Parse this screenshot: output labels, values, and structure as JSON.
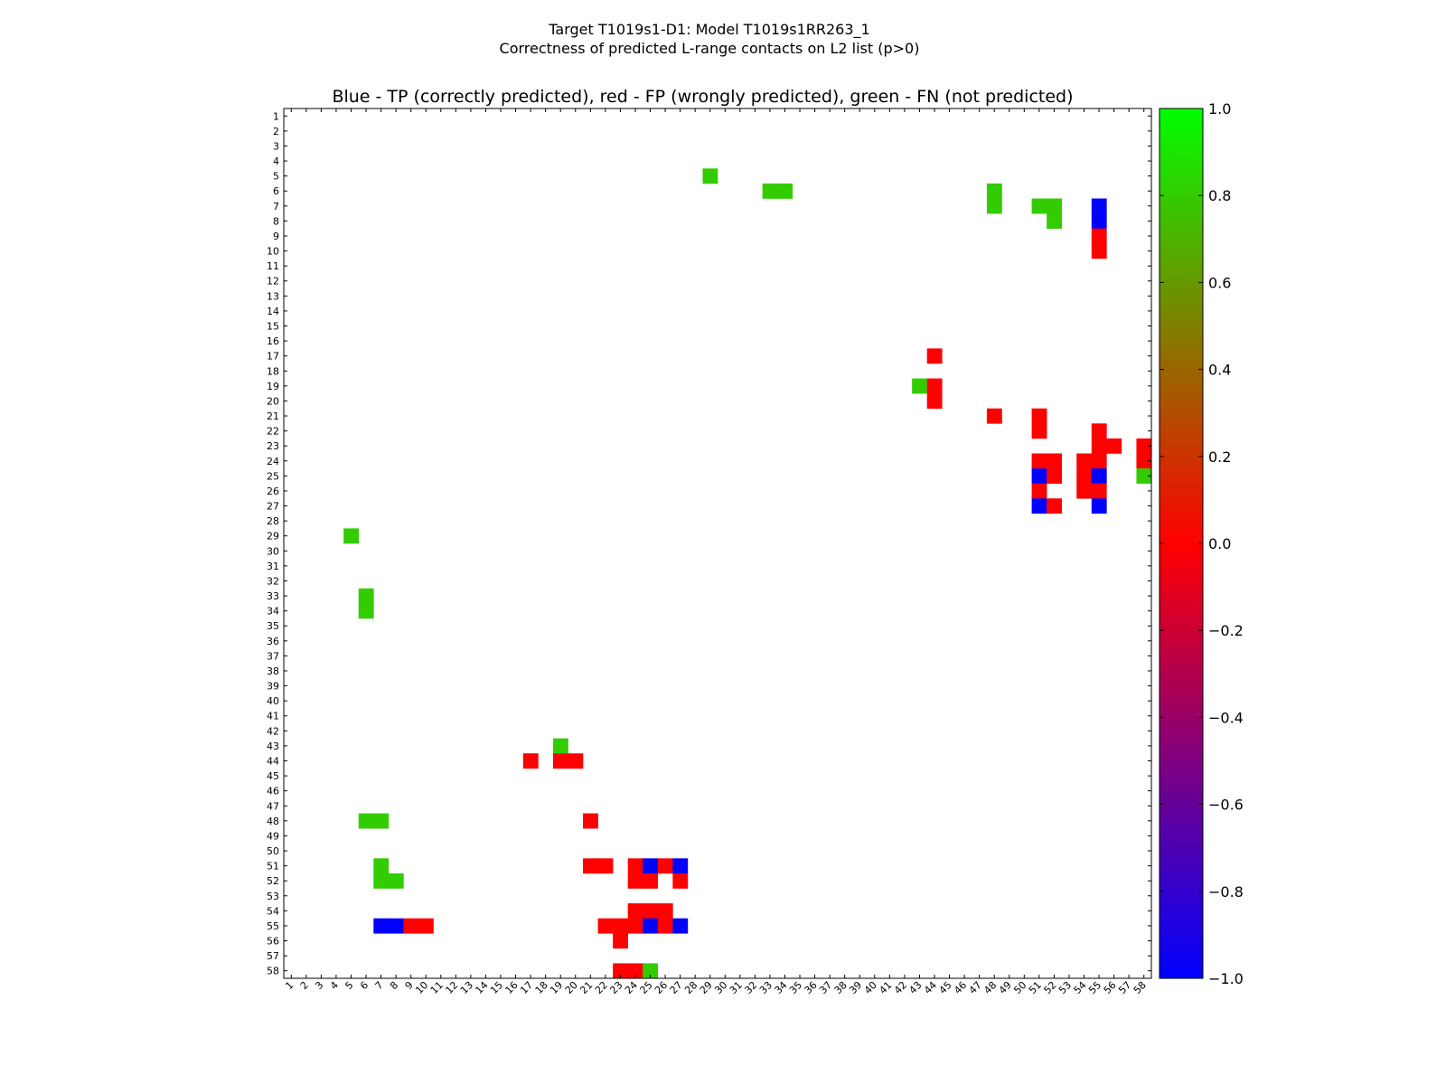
{
  "chart_data": {
    "type": "heatmap",
    "title_line1": "Target T1019s1-D1: Model T1019s1RR263_1",
    "title_line2": "Correctness of predicted L-range contacts on L2 list (p>0)",
    "subtitle": "Blue - TP (correctly predicted), red - FP (wrongly predicted), green - FN (not predicted)",
    "x_range": [
      1,
      58
    ],
    "y_range": [
      1,
      58
    ],
    "x_ticks": [
      "1",
      "2",
      "3",
      "4",
      "5",
      "6",
      "7",
      "8",
      "9",
      "10",
      "11",
      "12",
      "13",
      "14",
      "15",
      "16",
      "17",
      "18",
      "19",
      "20",
      "21",
      "22",
      "23",
      "24",
      "25",
      "26",
      "27",
      "28",
      "29",
      "30",
      "31",
      "32",
      "33",
      "34",
      "35",
      "36",
      "37",
      "38",
      "39",
      "40",
      "41",
      "42",
      "43",
      "44",
      "45",
      "46",
      "47",
      "48",
      "49",
      "50",
      "51",
      "52",
      "53",
      "54",
      "55",
      "56",
      "57",
      "58"
    ],
    "y_ticks": [
      "1",
      "2",
      "3",
      "4",
      "5",
      "6",
      "7",
      "8",
      "9",
      "10",
      "11",
      "12",
      "13",
      "14",
      "15",
      "16",
      "17",
      "18",
      "19",
      "20",
      "21",
      "22",
      "23",
      "24",
      "25",
      "26",
      "27",
      "28",
      "29",
      "30",
      "31",
      "32",
      "33",
      "34",
      "35",
      "36",
      "37",
      "38",
      "39",
      "40",
      "41",
      "42",
      "43",
      "44",
      "45",
      "46",
      "47",
      "48",
      "49",
      "50",
      "51",
      "52",
      "53",
      "54",
      "55",
      "56",
      "57",
      "58"
    ],
    "colorbar": {
      "range": [
        -1.0,
        1.0
      ],
      "tick_labels": [
        "1.0",
        "0.8",
        "0.6",
        "0.4",
        "0.2",
        "0.0",
        "−0.2",
        "−0.4",
        "−0.6",
        "−0.8",
        "−1.0"
      ],
      "stops": [
        "#0000ff",
        "#ff0000",
        "#00ff00"
      ]
    },
    "colors": {
      "TP": "#0000ff",
      "FP": "#ff0000",
      "FN": "#33cc00"
    },
    "cells": [
      {
        "x": 29,
        "y": 5,
        "c": "FN"
      },
      {
        "x": 33,
        "y": 6,
        "c": "FN"
      },
      {
        "x": 34,
        "y": 6,
        "c": "FN"
      },
      {
        "x": 48,
        "y": 6,
        "c": "FN"
      },
      {
        "x": 48,
        "y": 7,
        "c": "FN"
      },
      {
        "x": 51,
        "y": 7,
        "c": "FN"
      },
      {
        "x": 52,
        "y": 7,
        "c": "FN"
      },
      {
        "x": 52,
        "y": 8,
        "c": "FN"
      },
      {
        "x": 55,
        "y": 7,
        "c": "TP"
      },
      {
        "x": 55,
        "y": 8,
        "c": "TP"
      },
      {
        "x": 55,
        "y": 9,
        "c": "FP"
      },
      {
        "x": 55,
        "y": 10,
        "c": "FP"
      },
      {
        "x": 44,
        "y": 17,
        "c": "FP"
      },
      {
        "x": 43,
        "y": 19,
        "c": "FN"
      },
      {
        "x": 44,
        "y": 19,
        "c": "FP"
      },
      {
        "x": 44,
        "y": 20,
        "c": "FP"
      },
      {
        "x": 48,
        "y": 21,
        "c": "FP"
      },
      {
        "x": 51,
        "y": 21,
        "c": "FP"
      },
      {
        "x": 51,
        "y": 22,
        "c": "FP"
      },
      {
        "x": 55,
        "y": 22,
        "c": "FP"
      },
      {
        "x": 55,
        "y": 23,
        "c": "FP"
      },
      {
        "x": 56,
        "y": 23,
        "c": "FP"
      },
      {
        "x": 58,
        "y": 23,
        "c": "FP"
      },
      {
        "x": 58,
        "y": 24,
        "c": "FP"
      },
      {
        "x": 58,
        "y": 25,
        "c": "FN"
      },
      {
        "x": 51,
        "y": 24,
        "c": "FP"
      },
      {
        "x": 52,
        "y": 24,
        "c": "FP"
      },
      {
        "x": 54,
        "y": 24,
        "c": "FP"
      },
      {
        "x": 55,
        "y": 24,
        "c": "FP"
      },
      {
        "x": 51,
        "y": 25,
        "c": "TP"
      },
      {
        "x": 52,
        "y": 25,
        "c": "FP"
      },
      {
        "x": 54,
        "y": 25,
        "c": "FP"
      },
      {
        "x": 55,
        "y": 25,
        "c": "TP"
      },
      {
        "x": 51,
        "y": 26,
        "c": "FP"
      },
      {
        "x": 54,
        "y": 26,
        "c": "FP"
      },
      {
        "x": 55,
        "y": 26,
        "c": "FP"
      },
      {
        "x": 51,
        "y": 27,
        "c": "TP"
      },
      {
        "x": 52,
        "y": 27,
        "c": "FP"
      },
      {
        "x": 55,
        "y": 27,
        "c": "TP"
      },
      {
        "x": 5,
        "y": 29,
        "c": "FN"
      },
      {
        "x": 6,
        "y": 33,
        "c": "FN"
      },
      {
        "x": 6,
        "y": 34,
        "c": "FN"
      },
      {
        "x": 19,
        "y": 43,
        "c": "FN"
      },
      {
        "x": 17,
        "y": 44,
        "c": "FP"
      },
      {
        "x": 19,
        "y": 44,
        "c": "FP"
      },
      {
        "x": 20,
        "y": 44,
        "c": "FP"
      },
      {
        "x": 6,
        "y": 48,
        "c": "FN"
      },
      {
        "x": 7,
        "y": 48,
        "c": "FN"
      },
      {
        "x": 21,
        "y": 48,
        "c": "FP"
      },
      {
        "x": 7,
        "y": 51,
        "c": "FN"
      },
      {
        "x": 7,
        "y": 52,
        "c": "FN"
      },
      {
        "x": 8,
        "y": 52,
        "c": "FN"
      },
      {
        "x": 21,
        "y": 51,
        "c": "FP"
      },
      {
        "x": 22,
        "y": 51,
        "c": "FP"
      },
      {
        "x": 24,
        "y": 51,
        "c": "FP"
      },
      {
        "x": 25,
        "y": 51,
        "c": "TP"
      },
      {
        "x": 26,
        "y": 51,
        "c": "FP"
      },
      {
        "x": 27,
        "y": 51,
        "c": "TP"
      },
      {
        "x": 24,
        "y": 52,
        "c": "FP"
      },
      {
        "x": 25,
        "y": 52,
        "c": "FP"
      },
      {
        "x": 27,
        "y": 52,
        "c": "FP"
      },
      {
        "x": 24,
        "y": 54,
        "c": "FP"
      },
      {
        "x": 25,
        "y": 54,
        "c": "FP"
      },
      {
        "x": 26,
        "y": 54,
        "c": "FP"
      },
      {
        "x": 7,
        "y": 55,
        "c": "TP"
      },
      {
        "x": 8,
        "y": 55,
        "c": "TP"
      },
      {
        "x": 9,
        "y": 55,
        "c": "FP"
      },
      {
        "x": 10,
        "y": 55,
        "c": "FP"
      },
      {
        "x": 22,
        "y": 55,
        "c": "FP"
      },
      {
        "x": 23,
        "y": 55,
        "c": "FP"
      },
      {
        "x": 24,
        "y": 55,
        "c": "FP"
      },
      {
        "x": 25,
        "y": 55,
        "c": "TP"
      },
      {
        "x": 26,
        "y": 55,
        "c": "FP"
      },
      {
        "x": 27,
        "y": 55,
        "c": "TP"
      },
      {
        "x": 23,
        "y": 56,
        "c": "FP"
      },
      {
        "x": 23,
        "y": 58,
        "c": "FP"
      },
      {
        "x": 24,
        "y": 58,
        "c": "FP"
      },
      {
        "x": 25,
        "y": 58,
        "c": "FN"
      }
    ]
  }
}
